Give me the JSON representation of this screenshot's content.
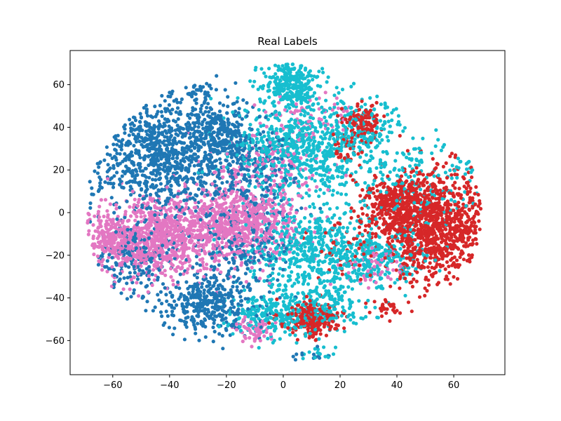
{
  "chart_data": {
    "type": "scatter",
    "title": "Real Labels",
    "xlabel": "",
    "ylabel": "",
    "xlim": [
      -75,
      78
    ],
    "ylim": [
      -76,
      76
    ],
    "xticks": [
      -60,
      -40,
      -20,
      0,
      20,
      40,
      60
    ],
    "yticks": [
      -60,
      -40,
      -20,
      0,
      20,
      40,
      60
    ],
    "grid": false,
    "legend": "none",
    "series_colors": [
      "#1f77b4",
      "#e377c2",
      "#17becf",
      "#d62728"
    ],
    "series": [
      {
        "color": "#1f77b4",
        "clusters": [
          {
            "cx": -40,
            "cy": 25,
            "sx": 12,
            "sy": 14,
            "n": 900
          },
          {
            "cx": -22,
            "cy": 38,
            "sx": 6,
            "sy": 7,
            "n": 250
          },
          {
            "cx": -30,
            "cy": 57,
            "sx": 3,
            "sy": 2,
            "n": 30
          },
          {
            "cx": -27,
            "cy": -43,
            "sx": 8,
            "sy": 7,
            "n": 350
          },
          {
            "cx": -52,
            "cy": -22,
            "sx": 7,
            "sy": 8,
            "n": 180
          },
          {
            "cx": -10,
            "cy": 20,
            "sx": 8,
            "sy": 10,
            "n": 200
          },
          {
            "cx": -15,
            "cy": -15,
            "sx": 9,
            "sy": 12,
            "n": 220
          },
          {
            "cx": 10,
            "cy": -68,
            "sx": 3,
            "sy": 1.5,
            "n": 12
          }
        ]
      },
      {
        "color": "#e377c2",
        "clusters": [
          {
            "cx": -45,
            "cy": -12,
            "sx": 11,
            "sy": 9,
            "n": 900
          },
          {
            "cx": -15,
            "cy": -5,
            "sx": 10,
            "sy": 8,
            "n": 700
          },
          {
            "cx": -60,
            "cy": -12,
            "sx": 3,
            "sy": 4,
            "n": 120
          },
          {
            "cx": -5,
            "cy": 22,
            "sx": 10,
            "sy": 8,
            "n": 150
          },
          {
            "cx": -10,
            "cy": -55,
            "sx": 4,
            "sy": 3,
            "n": 60
          },
          {
            "cx": 30,
            "cy": -25,
            "sx": 6,
            "sy": 5,
            "n": 60
          },
          {
            "cx": 10,
            "cy": 45,
            "sx": 8,
            "sy": 6,
            "n": 60
          }
        ]
      },
      {
        "color": "#17becf",
        "clusters": [
          {
            "cx": 3,
            "cy": 60,
            "sx": 5,
            "sy": 5,
            "n": 300
          },
          {
            "cx": 8,
            "cy": 30,
            "sx": 13,
            "sy": 12,
            "n": 700
          },
          {
            "cx": 12,
            "cy": -20,
            "sx": 12,
            "sy": 12,
            "n": 600
          },
          {
            "cx": 35,
            "cy": -20,
            "sx": 8,
            "sy": 6,
            "n": 200
          },
          {
            "cx": -5,
            "cy": -48,
            "sx": 7,
            "sy": 5,
            "n": 200
          },
          {
            "cx": 15,
            "cy": -45,
            "sx": 8,
            "sy": 5,
            "n": 150
          },
          {
            "cx": 30,
            "cy": 40,
            "sx": 6,
            "sy": 6,
            "n": 120
          },
          {
            "cx": 45,
            "cy": 15,
            "sx": 10,
            "sy": 10,
            "n": 150
          },
          {
            "cx": 65,
            "cy": 22,
            "sx": 2,
            "sy": 2,
            "n": 12
          },
          {
            "cx": 12,
            "cy": -67,
            "sx": 3,
            "sy": 1.5,
            "n": 15
          }
        ]
      },
      {
        "color": "#d62728",
        "clusters": [
          {
            "cx": 52,
            "cy": -5,
            "sx": 9,
            "sy": 12,
            "n": 1100
          },
          {
            "cx": 38,
            "cy": 5,
            "sx": 5,
            "sy": 6,
            "n": 200
          },
          {
            "cx": 28,
            "cy": 42,
            "sx": 3,
            "sy": 4,
            "n": 120
          },
          {
            "cx": 10,
            "cy": -50,
            "sx": 5,
            "sy": 4,
            "n": 250
          },
          {
            "cx": 23,
            "cy": 30,
            "sx": 3,
            "sy": 5,
            "n": 40
          },
          {
            "cx": 25,
            "cy": -15,
            "sx": 6,
            "sy": 8,
            "n": 60
          },
          {
            "cx": 36,
            "cy": -45,
            "sx": 3,
            "sy": 2,
            "n": 30
          }
        ]
      }
    ]
  }
}
